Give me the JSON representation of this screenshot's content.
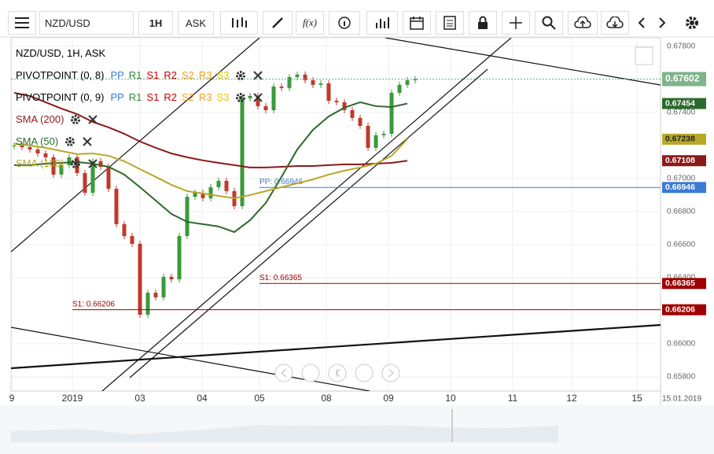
{
  "toolbar": {
    "symbol": "NZD/USD",
    "interval": "1H",
    "side": "ASK",
    "formula": "f(x)"
  },
  "chart_data": {
    "type": "candlestick",
    "title": "NZD/USD, 1H, ASK",
    "pivots": [
      {
        "name": "PIVOTPOINT (0, 8)"
      },
      {
        "name": "PIVOTPOINT (0, 9)"
      }
    ],
    "pivot_items": [
      {
        "name": "PP",
        "color": "#3a7bd5"
      },
      {
        "name": "R1",
        "color": "#2e8b2e"
      },
      {
        "name": "S1",
        "color": "#cc0000"
      },
      {
        "name": "R2",
        "color": "#cc0000"
      },
      {
        "name": "S2",
        "color": "#f0a020"
      },
      {
        "name": "R3",
        "color": "#f0a020"
      },
      {
        "name": "S3",
        "color": "#e8c800"
      }
    ],
    "ylim": [
      0.65714,
      0.67852
    ],
    "yticks": [
      {
        "value": 0.678,
        "label": "0.67800"
      },
      {
        "value": 0.674,
        "label": "0.67400"
      },
      {
        "value": 0.67,
        "label": "0.67000"
      },
      {
        "value": 0.668,
        "label": "0.66800"
      },
      {
        "value": 0.666,
        "label": "0.66600"
      },
      {
        "value": 0.664,
        "label": "0.66400"
      },
      {
        "value": 0.66,
        "label": "0.66000"
      },
      {
        "value": 0.658,
        "label": "0.65800"
      }
    ],
    "xtick_labels": [
      "9",
      "2019",
      "03",
      "04",
      "05",
      "08",
      "09",
      "10",
      "11",
      "12",
      "15"
    ],
    "date_label": "15.01.2019",
    "close": [
      0.672,
      0.6719,
      0.67176,
      0.67152,
      0.67129,
      0.67024,
      0.67081,
      0.67129,
      0.67033,
      0.66914,
      0.67105,
      0.67071,
      0.66938,
      0.66724,
      0.66652,
      0.66605,
      0.66176,
      0.66309,
      0.66281,
      0.66405,
      0.6639,
      0.66652,
      0.6689,
      0.66914,
      0.66881,
      0.66948,
      0.66986,
      0.66924,
      0.66833,
      0.67486,
      0.675,
      0.67438,
      0.67414,
      0.67557,
      0.67548,
      0.67614,
      0.67629,
      0.67595,
      0.67567,
      0.67576,
      0.67471,
      0.67462,
      0.67414,
      0.67367,
      0.67319,
      0.67186,
      0.67262,
      0.67271,
      0.67519,
      0.67567,
      0.67595,
      0.67602
    ],
    "series": [
      {
        "name": "SMA (200)",
        "color": "#8b1a1a",
        "values": [
          0.67519,
          0.675,
          0.67462,
          0.67424,
          0.6739,
          0.67343,
          0.6731,
          0.67271,
          0.67224,
          0.67186,
          0.67152,
          0.67129,
          0.6711,
          0.67095,
          0.67081,
          0.67067,
          0.67067,
          0.67071,
          0.67076,
          0.67076,
          0.67081,
          0.67086,
          0.67086,
          0.6709,
          0.67095,
          0.67108
        ]
      },
      {
        "name": "SMA (50)",
        "color": "#2d6a2d",
        "values": [
          0.67081,
          0.67081,
          0.6709,
          0.67095,
          0.671,
          0.6709,
          0.67071,
          0.67024,
          0.66948,
          0.66867,
          0.66786,
          0.66738,
          0.66724,
          0.6671,
          0.66676,
          0.66748,
          0.66852,
          0.6701,
          0.67176,
          0.67295,
          0.67376,
          0.67429,
          0.67462,
          0.67438,
          0.67433,
          0.67454
        ]
      },
      {
        "name": "SMA (100)",
        "color": "#b8a828",
        "values": [
          0.6721,
          0.672,
          0.67186,
          0.67167,
          0.67148,
          0.67152,
          0.67138,
          0.67105,
          0.67057,
          0.6701,
          0.66962,
          0.66924,
          0.6691,
          0.66895,
          0.66881,
          0.669,
          0.66924,
          0.66948,
          0.66971,
          0.66995,
          0.67024,
          0.67048,
          0.67067,
          0.6709,
          0.67138,
          0.67238
        ]
      }
    ],
    "levels": [
      {
        "label": "PP: 0.66946",
        "value": 0.66946,
        "color": "#3a7bd5"
      },
      {
        "label": "S1: 0.66365",
        "value": 0.66365,
        "color": "#a00000"
      },
      {
        "label": "S1: 0.66206",
        "value": 0.66206,
        "color": "#a00000"
      }
    ]
  }
}
